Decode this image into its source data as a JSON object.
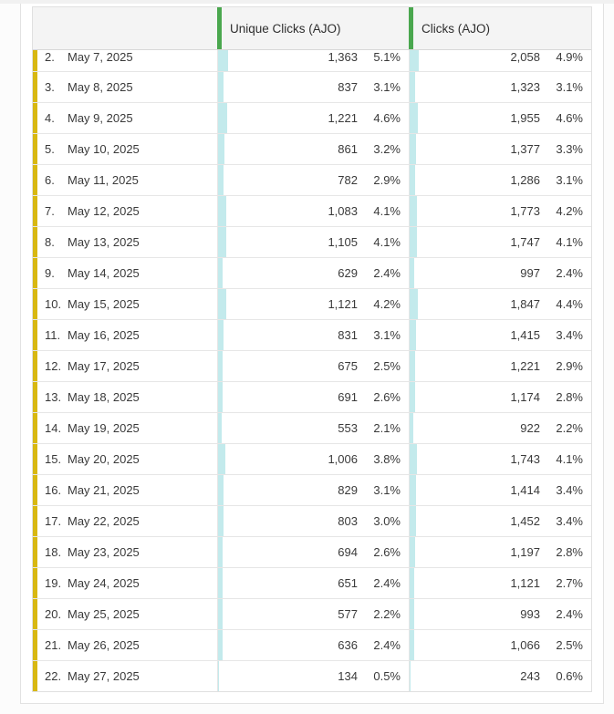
{
  "page": {
    "background": "#fcfcfc",
    "top_strip_color": "#f1f1f1"
  },
  "table": {
    "header": {
      "date_column_label": "",
      "columns": [
        {
          "label": "Unique Clicks (AJO)"
        },
        {
          "label": "Clicks (AJO)"
        }
      ]
    },
    "colors": {
      "header_accent_green": "#4aa74e",
      "row_accent_yellow": "#d8b812",
      "bar_fill_cyan": "#c3eaec"
    },
    "rows": [
      {
        "index": "2.",
        "date": "May 7, 2025",
        "unique_clicks": "1,363",
        "unique_clicks_pct": "5.1%",
        "clicks": "2,058",
        "clicks_pct": "4.9%"
      },
      {
        "index": "3.",
        "date": "May 8, 2025",
        "unique_clicks": "837",
        "unique_clicks_pct": "3.1%",
        "clicks": "1,323",
        "clicks_pct": "3.1%"
      },
      {
        "index": "4.",
        "date": "May 9, 2025",
        "unique_clicks": "1,221",
        "unique_clicks_pct": "4.6%",
        "clicks": "1,955",
        "clicks_pct": "4.6%"
      },
      {
        "index": "5.",
        "date": "May 10, 2025",
        "unique_clicks": "861",
        "unique_clicks_pct": "3.2%",
        "clicks": "1,377",
        "clicks_pct": "3.3%"
      },
      {
        "index": "6.",
        "date": "May 11, 2025",
        "unique_clicks": "782",
        "unique_clicks_pct": "2.9%",
        "clicks": "1,286",
        "clicks_pct": "3.1%"
      },
      {
        "index": "7.",
        "date": "May 12, 2025",
        "unique_clicks": "1,083",
        "unique_clicks_pct": "4.1%",
        "clicks": "1,773",
        "clicks_pct": "4.2%"
      },
      {
        "index": "8.",
        "date": "May 13, 2025",
        "unique_clicks": "1,105",
        "unique_clicks_pct": "4.1%",
        "clicks": "1,747",
        "clicks_pct": "4.1%"
      },
      {
        "index": "9.",
        "date": "May 14, 2025",
        "unique_clicks": "629",
        "unique_clicks_pct": "2.4%",
        "clicks": "997",
        "clicks_pct": "2.4%"
      },
      {
        "index": "10.",
        "date": "May 15, 2025",
        "unique_clicks": "1,121",
        "unique_clicks_pct": "4.2%",
        "clicks": "1,847",
        "clicks_pct": "4.4%"
      },
      {
        "index": "11.",
        "date": "May 16, 2025",
        "unique_clicks": "831",
        "unique_clicks_pct": "3.1%",
        "clicks": "1,415",
        "clicks_pct": "3.4%"
      },
      {
        "index": "12.",
        "date": "May 17, 2025",
        "unique_clicks": "675",
        "unique_clicks_pct": "2.5%",
        "clicks": "1,221",
        "clicks_pct": "2.9%"
      },
      {
        "index": "13.",
        "date": "May 18, 2025",
        "unique_clicks": "691",
        "unique_clicks_pct": "2.6%",
        "clicks": "1,174",
        "clicks_pct": "2.8%"
      },
      {
        "index": "14.",
        "date": "May 19, 2025",
        "unique_clicks": "553",
        "unique_clicks_pct": "2.1%",
        "clicks": "922",
        "clicks_pct": "2.2%"
      },
      {
        "index": "15.",
        "date": "May 20, 2025",
        "unique_clicks": "1,006",
        "unique_clicks_pct": "3.8%",
        "clicks": "1,743",
        "clicks_pct": "4.1%"
      },
      {
        "index": "16.",
        "date": "May 21, 2025",
        "unique_clicks": "829",
        "unique_clicks_pct": "3.1%",
        "clicks": "1,414",
        "clicks_pct": "3.4%"
      },
      {
        "index": "17.",
        "date": "May 22, 2025",
        "unique_clicks": "803",
        "unique_clicks_pct": "3.0%",
        "clicks": "1,452",
        "clicks_pct": "3.4%"
      },
      {
        "index": "18.",
        "date": "May 23, 2025",
        "unique_clicks": "694",
        "unique_clicks_pct": "2.6%",
        "clicks": "1,197",
        "clicks_pct": "2.8%"
      },
      {
        "index": "19.",
        "date": "May 24, 2025",
        "unique_clicks": "651",
        "unique_clicks_pct": "2.4%",
        "clicks": "1,121",
        "clicks_pct": "2.7%"
      },
      {
        "index": "20.",
        "date": "May 25, 2025",
        "unique_clicks": "577",
        "unique_clicks_pct": "2.2%",
        "clicks": "993",
        "clicks_pct": "2.4%"
      },
      {
        "index": "21.",
        "date": "May 26, 2025",
        "unique_clicks": "636",
        "unique_clicks_pct": "2.4%",
        "clicks": "1,066",
        "clicks_pct": "2.5%"
      },
      {
        "index": "22.",
        "date": "May 27, 2025",
        "unique_clicks": "134",
        "unique_clicks_pct": "0.5%",
        "clicks": "243",
        "clicks_pct": "0.6%"
      }
    ]
  }
}
